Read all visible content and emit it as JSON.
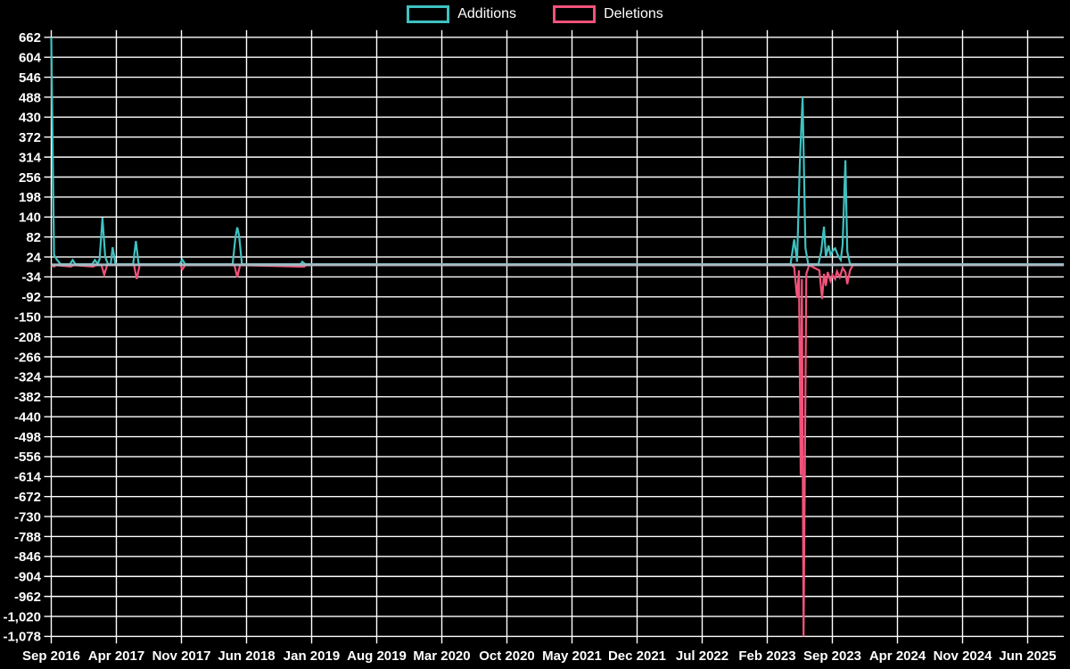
{
  "legend": {
    "additions_label": "Additions",
    "deletions_label": "Deletions"
  },
  "colors": {
    "additions": "#3fc1c1",
    "deletions": "#f2527a",
    "baseline": "#a9bfc6",
    "grid": "#ffffff",
    "background": "#000000",
    "text": "#ffffff"
  },
  "chart_data": {
    "type": "line",
    "title": "",
    "xlabel": "",
    "ylabel": "",
    "legend_position": "top-center",
    "grid": true,
    "x_axis": {
      "tick_labels": [
        "Sep 2016",
        "Apr 2017",
        "Nov 2017",
        "Jun 2018",
        "Jan 2019",
        "Aug 2019",
        "Mar 2020",
        "Oct 2020",
        "May 2021",
        "Dec 2021",
        "Jul 2022",
        "Feb 2023",
        "Sep 2023",
        "Apr 2024",
        "Nov 2024",
        "Jun 2025"
      ],
      "months_per_tick": 7,
      "x_max_months": 108.9
    },
    "y_axis": {
      "max": 662,
      "min": -1078,
      "tick_step": 58,
      "tick_labels": [
        "662",
        "604",
        "546",
        "488",
        "430",
        "372",
        "314",
        "256",
        "198",
        "140",
        "82",
        "24",
        "-34",
        "-92",
        "-150",
        "-208",
        "-266",
        "-324",
        "-382",
        "-440",
        "-498",
        "-556",
        "-614",
        "-672",
        "-730",
        "-788",
        "-846",
        "-904",
        "-962",
        "-1,020",
        "-1,078"
      ]
    },
    "zero_baseline": true,
    "series": [
      {
        "name": "Additions",
        "color_key": "additions",
        "points": [
          [
            0,
            662
          ],
          [
            0.3,
            30
          ],
          [
            0.6,
            16
          ],
          [
            1.0,
            3
          ],
          [
            2.0,
            3
          ],
          [
            2.3,
            15
          ],
          [
            2.6,
            3
          ],
          [
            4.4,
            3
          ],
          [
            4.7,
            15
          ],
          [
            5.0,
            3
          ],
          [
            5.2,
            18
          ],
          [
            5.5,
            138
          ],
          [
            5.8,
            24
          ],
          [
            6.1,
            3
          ],
          [
            6.4,
            3
          ],
          [
            6.6,
            52
          ],
          [
            6.9,
            3
          ],
          [
            8.8,
            3
          ],
          [
            9.1,
            70
          ],
          [
            9.4,
            3
          ],
          [
            13.8,
            3
          ],
          [
            14.1,
            16
          ],
          [
            14.4,
            3
          ],
          [
            19.5,
            3
          ],
          [
            19.8,
            80
          ],
          [
            20.0,
            110
          ],
          [
            20.2,
            85
          ],
          [
            20.5,
            3
          ],
          [
            26.8,
            3
          ],
          [
            27.0,
            10
          ],
          [
            27.3,
            3
          ],
          [
            79.5,
            3
          ],
          [
            79.9,
            75
          ],
          [
            80.2,
            10
          ],
          [
            80.5,
            295
          ],
          [
            80.8,
            488
          ],
          [
            81.1,
            50
          ],
          [
            81.4,
            3
          ],
          [
            82.5,
            3
          ],
          [
            82.8,
            40
          ],
          [
            83.1,
            112
          ],
          [
            83.3,
            25
          ],
          [
            83.6,
            57
          ],
          [
            83.8,
            30
          ],
          [
            84.1,
            44
          ],
          [
            84.3,
            49
          ],
          [
            84.6,
            28
          ],
          [
            84.9,
            15
          ],
          [
            85.1,
            60
          ],
          [
            85.4,
            305
          ],
          [
            85.6,
            40
          ],
          [
            85.9,
            3
          ],
          [
            108.9,
            3
          ]
        ]
      },
      {
        "name": "Deletions",
        "color_key": "deletions",
        "points": [
          [
            0,
            0
          ],
          [
            0.3,
            -4
          ],
          [
            0.5,
            0
          ],
          [
            2.1,
            -4
          ],
          [
            2.4,
            0
          ],
          [
            4.5,
            -4
          ],
          [
            4.8,
            0
          ],
          [
            5.4,
            0
          ],
          [
            5.7,
            -28
          ],
          [
            6.0,
            0
          ],
          [
            8.9,
            0
          ],
          [
            9.2,
            -40
          ],
          [
            9.5,
            0
          ],
          [
            13.9,
            0
          ],
          [
            14.1,
            -12
          ],
          [
            14.4,
            0
          ],
          [
            19.7,
            0
          ],
          [
            20.0,
            -35
          ],
          [
            20.3,
            0
          ],
          [
            26.7,
            -4
          ],
          [
            27.2,
            -4
          ],
          [
            27.4,
            0
          ],
          [
            79.6,
            0
          ],
          [
            79.9,
            -6
          ],
          [
            80.2,
            -95
          ],
          [
            80.4,
            -15
          ],
          [
            80.6,
            -610
          ],
          [
            80.72,
            -40
          ],
          [
            80.9,
            -1078
          ],
          [
            81.2,
            -25
          ],
          [
            81.5,
            0
          ],
          [
            82.6,
            -15
          ],
          [
            82.9,
            -98
          ],
          [
            83.1,
            -25
          ],
          [
            83.3,
            -60
          ],
          [
            83.5,
            -20
          ],
          [
            83.8,
            -45
          ],
          [
            84.0,
            -28
          ],
          [
            84.3,
            -40
          ],
          [
            84.5,
            -18
          ],
          [
            84.8,
            -35
          ],
          [
            85.1,
            -8
          ],
          [
            85.4,
            -20
          ],
          [
            85.6,
            -55
          ],
          [
            85.9,
            -15
          ],
          [
            86.2,
            0
          ],
          [
            108.9,
            0
          ]
        ]
      }
    ]
  }
}
